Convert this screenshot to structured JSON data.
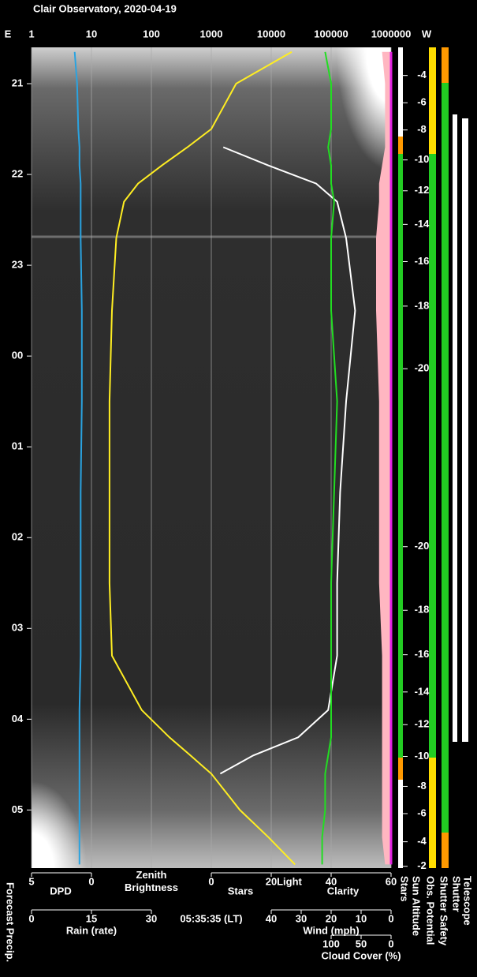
{
  "chart_data": {
    "type": "line",
    "title": "Clair Observatory, 2020-04-19",
    "time": "05:35:35 (LT)",
    "east": "E",
    "west": "W",
    "x": [
      20.65,
      21.0,
      21.5,
      21.7,
      21.9,
      22.1,
      22.3,
      22.7,
      23.5,
      24.5,
      25.5,
      26.5,
      27.3,
      27.9,
      28.2,
      28.4,
      28.6,
      29.0,
      29.3,
      29.6
    ],
    "xlim": [
      20.6,
      29.64
    ],
    "xticks": [
      {
        "value": 21,
        "label": "21"
      },
      {
        "value": 22,
        "label": "22"
      },
      {
        "value": 23,
        "label": "23"
      },
      {
        "value": 24,
        "label": "00"
      },
      {
        "value": 25,
        "label": "01"
      },
      {
        "value": 26,
        "label": "02"
      },
      {
        "value": 27,
        "label": "03"
      },
      {
        "value": 28,
        "label": "04"
      },
      {
        "value": 29,
        "label": "05"
      }
    ],
    "axes": {
      "brightness": {
        "lim": [
          1,
          1000000
        ],
        "ticks": [
          1,
          10,
          100,
          1000,
          10000,
          100000,
          1000000
        ],
        "log": true,
        "grid": true
      },
      "dpd": {
        "lim": [
          5,
          0
        ],
        "ticks": [
          5,
          0
        ]
      },
      "stars": {
        "lim": [
          0,
          60
        ],
        "ticks": [
          0,
          20,
          40,
          60
        ]
      },
      "rain": {
        "label": "Rain (rate)",
        "color": "#33ccdd",
        "lim": [
          0,
          30
        ],
        "ticks": [
          0,
          15,
          30
        ]
      },
      "wind": {
        "label": "Wind (mph)",
        "color": "#ffb6c1",
        "lim": [
          40,
          0
        ],
        "ticks": [
          40,
          30,
          20,
          10,
          0
        ]
      },
      "cloud": {
        "label": "Cloud Cover (%)",
        "color": "#e020e0",
        "lim": [
          100,
          0
        ],
        "ticks": [
          100,
          50,
          0
        ]
      }
    },
    "series": [
      {
        "name": "DPD",
        "axis": "dpd",
        "color": "#2aa3e0",
        "values": [
          1.4,
          1.2,
          1.1,
          1.0,
          1.0,
          0.9,
          0.9,
          0.9,
          0.8,
          0.8,
          0.9,
          0.9,
          0.9,
          1.0,
          1.0,
          1.0,
          1.0,
          1.0,
          1.0,
          1.0
        ]
      },
      {
        "name": [
          "Zenith",
          "Brightness"
        ],
        "axis": "brightness",
        "color": "#ffee22",
        "values": [
          22000,
          2600,
          1000,
          400,
          150,
          60,
          35,
          26,
          22,
          20,
          20,
          20,
          22,
          69,
          200,
          450,
          1000,
          3000,
          9000,
          25000
        ]
      },
      {
        "name": "Stars",
        "axis": "stars",
        "color": "#ffffff",
        "values": [
          null,
          null,
          null,
          4,
          19,
          35,
          42,
          45,
          48,
          45,
          43,
          42,
          42,
          39,
          29,
          14,
          3,
          null,
          null,
          null
        ]
      },
      {
        "name": "Clarity",
        "axis": "stars",
        "color": "#22dd22",
        "values": [
          38,
          40,
          40,
          39,
          40,
          40,
          41,
          40,
          40,
          42,
          41,
          40,
          40,
          40,
          40,
          39,
          38,
          38,
          37,
          37
        ]
      },
      {
        "axis": "wind",
        "color": "#ffb6c1",
        "values": [
          3,
          2,
          2,
          2,
          3,
          4,
          4,
          5,
          5,
          4,
          4,
          4,
          3,
          3,
          3,
          3,
          3,
          3,
          3,
          2
        ]
      },
      {
        "axis": "cloud",
        "color": "#e020e0",
        "values": [
          0,
          0,
          0,
          0,
          0,
          0,
          0,
          0,
          0,
          0,
          0,
          0,
          0,
          0,
          0,
          0,
          0,
          0,
          0,
          0
        ]
      }
    ],
    "light_label": "Light",
    "light_color": "#ffee22",
    "sun_altitude": {
      "times": [
        20.91,
        21.21,
        21.51,
        21.84,
        22.18,
        22.55,
        22.96,
        23.45,
        24.14,
        26.1,
        26.8,
        27.29,
        27.7,
        28.06,
        28.41,
        28.74,
        29.04,
        29.35,
        29.62
      ],
      "values": [
        -4,
        -6,
        -8,
        -10,
        -12,
        -14,
        -16,
        -18,
        -20,
        -20,
        -18,
        -16,
        -14,
        -12,
        -10,
        -8,
        -6,
        -4,
        -2
      ]
    },
    "status_labels": [
      "Forecast Precip.",
      "Stars",
      "Sun Altitude",
      "Obs. Potential",
      "Shutter Safety",
      "Shutter",
      "Telescope"
    ]
  }
}
